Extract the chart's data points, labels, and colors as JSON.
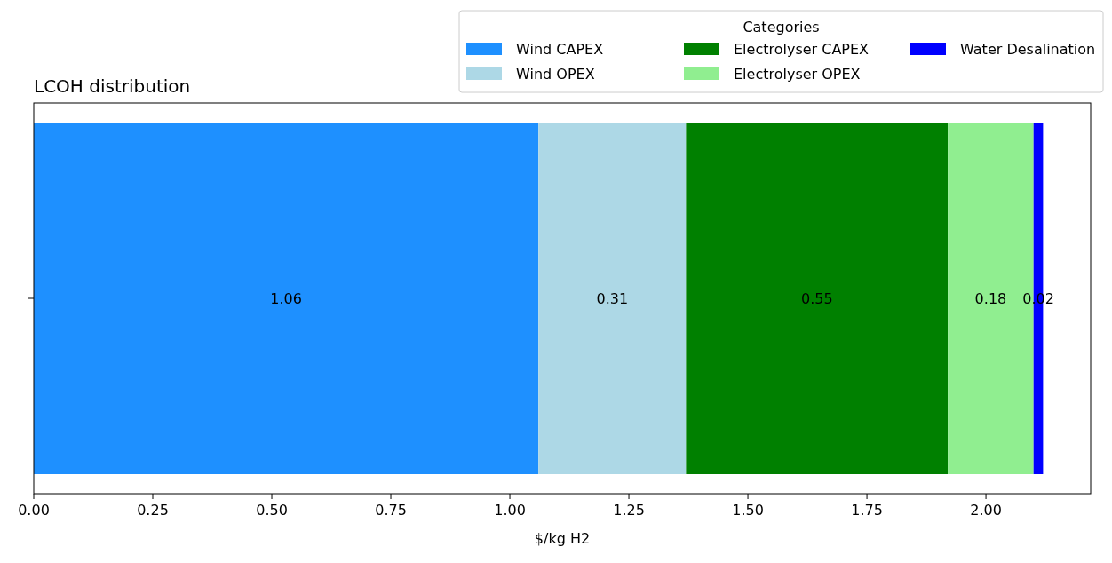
{
  "chart_data": {
    "type": "bar",
    "orientation": "horizontal",
    "stacked": true,
    "title": "LCOH distribution",
    "xlabel": "$/kg H2",
    "legend_title": "Categories",
    "legend": "top right",
    "data_labels": true,
    "categories": [
      null
    ],
    "series": [
      {
        "name": "Wind CAPEX",
        "color": "#1e90ff",
        "values": [
          1.06
        ]
      },
      {
        "name": "Wind OPEX",
        "color": "#add8e6",
        "values": [
          0.31
        ]
      },
      {
        "name": "Electrolyser CAPEX",
        "color": "#008000",
        "values": [
          0.55
        ]
      },
      {
        "name": "Electrolyser OPEX",
        "color": "#90ee90",
        "values": [
          0.18
        ]
      },
      {
        "name": "Water Desalination",
        "color": "#0000ff",
        "values": [
          0.02
        ]
      }
    ],
    "xlim": [
      0,
      2.22
    ],
    "xticks": [
      {
        "value": 0,
        "label": "0.00"
      },
      {
        "value": 0.25,
        "label": "0.25"
      },
      {
        "value": 0.5,
        "label": "0.50"
      },
      {
        "value": 0.75,
        "label": "0.75"
      },
      {
        "value": 1,
        "label": "1.00"
      },
      {
        "value": 1.25,
        "label": "1.25"
      },
      {
        "value": 1.5,
        "label": "1.50"
      },
      {
        "value": 1.75,
        "label": "1.75"
      },
      {
        "value": 2,
        "label": "2.00"
      }
    ]
  }
}
